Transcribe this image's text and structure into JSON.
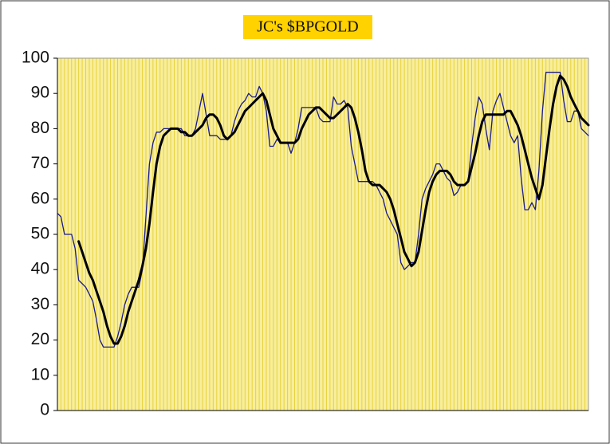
{
  "chart_data": {
    "type": "line",
    "title": "JC's $BPGOLD",
    "ylim": [
      0,
      100
    ],
    "yticks": [
      0,
      10,
      20,
      30,
      40,
      50,
      60,
      70,
      80,
      90,
      100
    ],
    "background": "#f8ee9c",
    "grid_color": "#e6d23c",
    "series": [
      {
        "color": "#1a1a8c",
        "width": 1.3,
        "values": [
          56,
          55,
          50,
          50,
          50,
          46,
          37,
          36,
          35,
          33,
          31,
          26,
          20,
          18,
          18,
          18,
          18,
          21,
          25,
          30,
          33,
          35,
          35,
          35,
          40,
          55,
          70,
          76,
          79,
          79,
          80,
          80,
          80,
          80,
          80,
          80,
          78,
          78,
          78,
          80,
          85,
          90,
          84,
          78,
          78,
          78,
          77,
          77,
          77,
          78,
          82,
          85,
          87,
          88,
          90,
          89,
          89,
          92,
          90,
          85,
          75,
          75,
          77,
          76,
          76,
          76,
          73,
          76,
          80,
          86,
          86,
          86,
          86,
          86,
          83,
          82,
          82,
          82,
          89,
          87,
          87,
          88,
          86,
          75,
          70,
          65,
          65,
          65,
          65,
          65,
          64,
          62,
          60,
          56,
          54,
          52,
          50,
          42,
          40,
          41,
          42,
          42,
          50,
          60,
          63,
          65,
          67,
          70,
          70,
          68,
          66,
          65,
          61,
          62,
          64,
          64,
          65,
          75,
          83,
          89,
          87,
          80,
          74,
          85,
          88,
          90,
          86,
          82,
          78,
          76,
          78,
          66,
          57,
          57,
          59,
          57,
          68,
          85,
          96,
          96,
          96,
          96,
          96,
          88,
          82,
          82,
          85,
          85,
          80,
          79,
          78
        ]
      },
      {
        "color": "#000000",
        "width": 3,
        "values": [
          null,
          null,
          null,
          null,
          null,
          null,
          48,
          45,
          42,
          39,
          37,
          34,
          31,
          28,
          24,
          21,
          19,
          19,
          21,
          24,
          28,
          31,
          34,
          37,
          41,
          46,
          53,
          62,
          70,
          75,
          78,
          79,
          80,
          80,
          80,
          79,
          79,
          78,
          78,
          79,
          80,
          81,
          83,
          84,
          84,
          83,
          81,
          78,
          77,
          78,
          79,
          81,
          83,
          85,
          86,
          87,
          88,
          89,
          90,
          88,
          84,
          80,
          78,
          76,
          76,
          76,
          76,
          76,
          77,
          80,
          82,
          84,
          85,
          86,
          86,
          85,
          84,
          83,
          83,
          84,
          85,
          86,
          87,
          86,
          83,
          79,
          74,
          68,
          65,
          64,
          64,
          64,
          63,
          62,
          60,
          57,
          53,
          49,
          45,
          43,
          41,
          42,
          45,
          51,
          57,
          62,
          65,
          67,
          68,
          68,
          68,
          67,
          65,
          64,
          64,
          64,
          65,
          69,
          73,
          78,
          82,
          84,
          84,
          84,
          84,
          84,
          84,
          85,
          85,
          83,
          81,
          78,
          74,
          70,
          66,
          63,
          60,
          64,
          72,
          80,
          87,
          92,
          95,
          94,
          92,
          89,
          87,
          85,
          83,
          82,
          81
        ]
      }
    ]
  }
}
